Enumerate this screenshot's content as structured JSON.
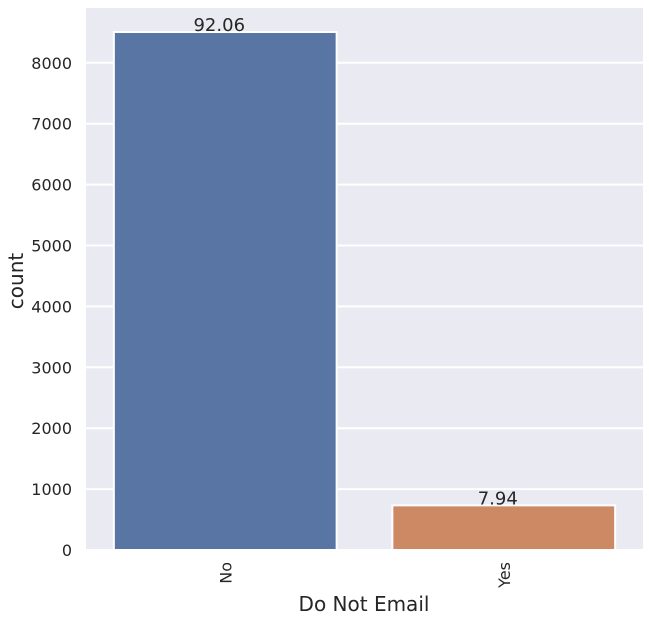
{
  "chart_data": {
    "type": "bar",
    "categories": [
      "No",
      "Yes"
    ],
    "values": [
      8506,
      733
    ],
    "data_labels": [
      "92.06",
      "7.94"
    ],
    "xlabel": "Do Not Email",
    "ylabel": "count",
    "ylim": [
      0,
      8900
    ],
    "yticks": [
      0,
      1000,
      2000,
      3000,
      4000,
      5000,
      6000,
      7000,
      8000
    ],
    "grid": true,
    "colors": {
      "plot_background": "#eaeaf2",
      "grid": "#ffffff",
      "bars": [
        "#5975a4",
        "#cc8963"
      ]
    }
  }
}
